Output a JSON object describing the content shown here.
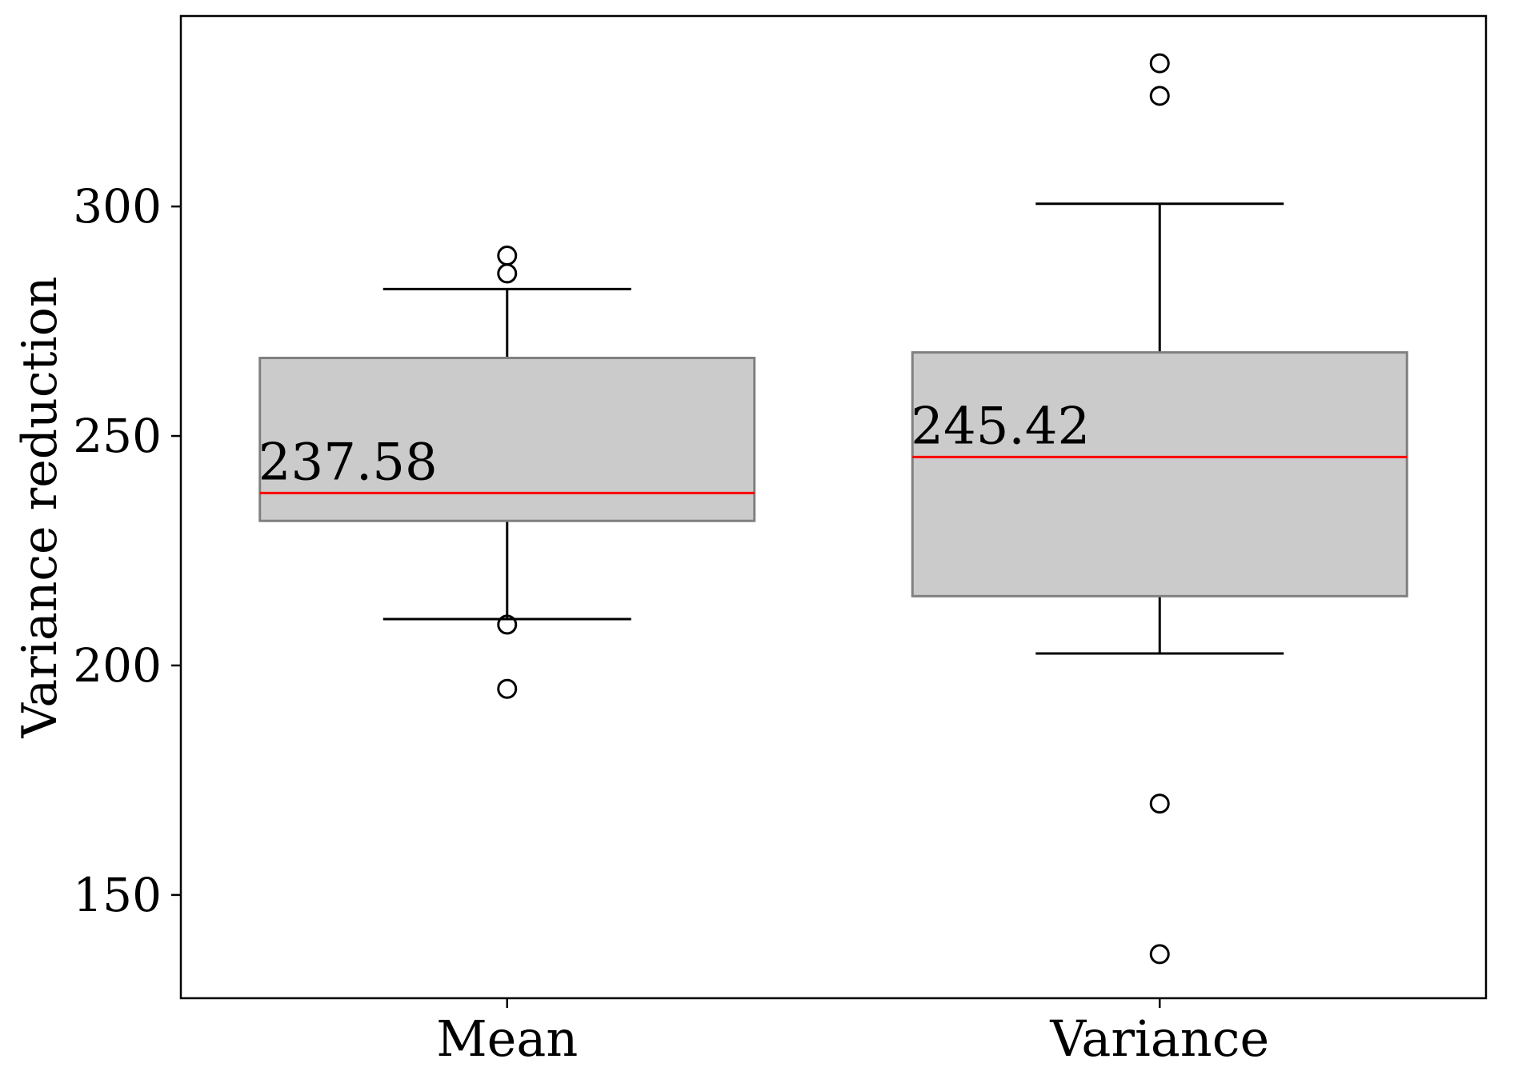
{
  "chart_data": {
    "type": "box",
    "title": "",
    "xlabel": "",
    "ylabel": "Variance reduction",
    "ylim": [
      127.5,
      341.5
    ],
    "yticks": [
      150,
      200,
      250,
      300
    ],
    "grid": false,
    "legend": "none",
    "categories": [
      "Mean",
      "Variance"
    ],
    "boxes": [
      {
        "category": "Mean",
        "whisker_low": 210.1,
        "q1": 231.5,
        "median": 237.58,
        "q3": 267.0,
        "whisker_high": 282.0,
        "outliers": [
          289.3,
          285.4,
          208.9,
          194.9
        ],
        "median_label": "237.58"
      },
      {
        "category": "Variance",
        "whisker_low": 202.6,
        "q1": 215.1,
        "median": 245.42,
        "q3": 268.2,
        "whisker_high": 300.6,
        "outliers": [
          331.2,
          324.1,
          169.9,
          137.1
        ],
        "median_label": "245.42"
      }
    ],
    "colors": {
      "box_fill": "#cbcbcb",
      "box_edge": "#808080",
      "median": "#ff0000",
      "whisker": "#000000",
      "outlier": "#000000",
      "frame": "#000000"
    }
  }
}
